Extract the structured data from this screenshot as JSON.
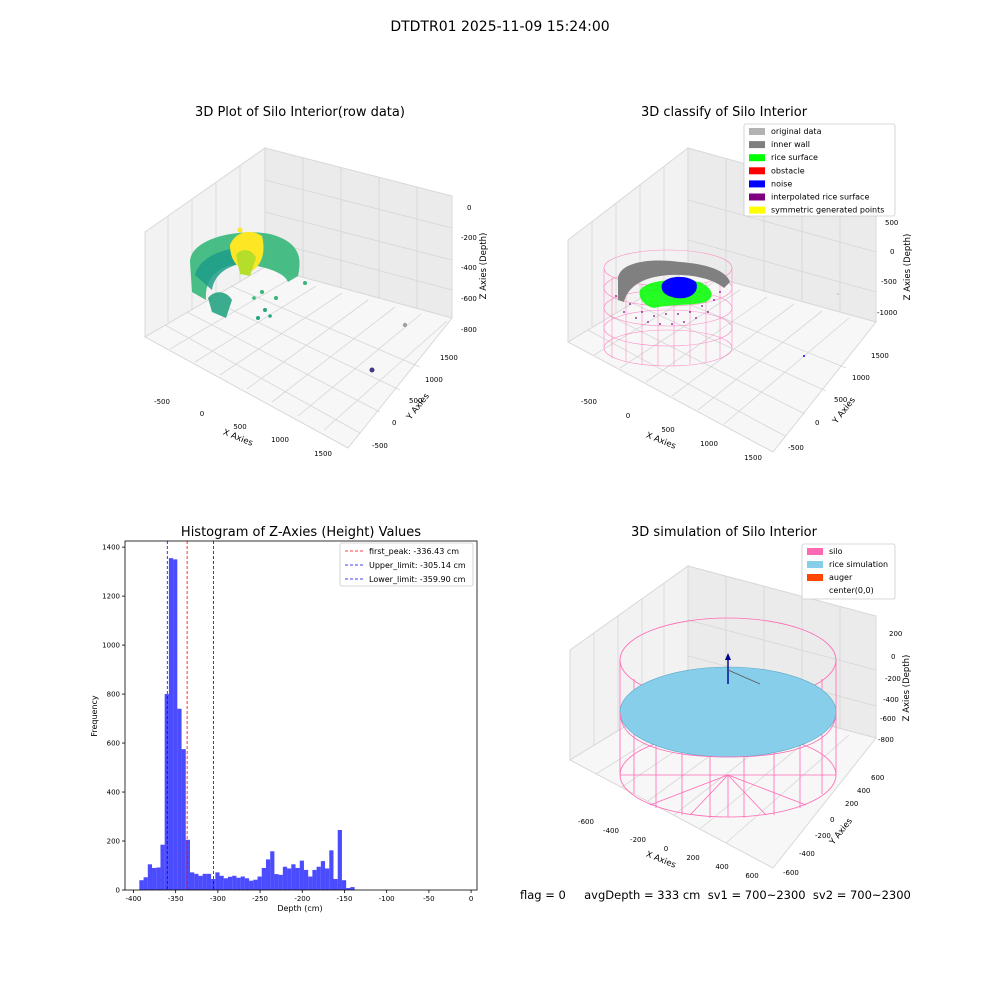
{
  "figure": {
    "suptitle": "DTDTR01 2025-11-09 15:24:00",
    "footer": "flag = 0     avgDepth = 333 cm  sv1 = 700~2300  sv2 = 700~2300"
  },
  "panels": {
    "raw": {
      "title": "3D Plot of Silo Interior(row data)",
      "xlabel": "X Axies",
      "ylabel": "Y Axies",
      "zlabel": "Z Axies (Depth)",
      "xticks": [
        "-500",
        "0",
        "500",
        "1000",
        "1500"
      ],
      "yticks": [
        "-500",
        "0",
        "500",
        "1000",
        "1500"
      ],
      "zticks": [
        "0",
        "-200",
        "-400",
        "-600",
        "-800"
      ]
    },
    "classify": {
      "title": "3D classify of Silo Interior",
      "xlabel": "X Axies",
      "ylabel": "Y Axies",
      "zlabel": "Z Axies (Depth)",
      "xticks": [
        "-500",
        "0",
        "500",
        "1000",
        "1500"
      ],
      "yticks": [
        "-500",
        "0",
        "500",
        "1000",
        "1500"
      ],
      "zticks": [
        "500",
        "0",
        "-500",
        "-1000"
      ],
      "legend": [
        {
          "label": "original data",
          "color": "#b3b3b3"
        },
        {
          "label": "inner wall",
          "color": "#808080"
        },
        {
          "label": "rice surface",
          "color": "#00ff00"
        },
        {
          "label": "obstacle",
          "color": "#ff0000"
        },
        {
          "label": "noise",
          "color": "#0000ff"
        },
        {
          "label": "interpolated rice surface",
          "color": "#800080"
        },
        {
          "label": "symmetric generated points",
          "color": "#ffff00"
        }
      ]
    },
    "simulation": {
      "title": "3D simulation of Silo Interior",
      "xlabel": "X Axies",
      "ylabel": "Y Axies",
      "zlabel": "Z Axies (Depth)",
      "xticks": [
        "-600",
        "-400",
        "-200",
        "0",
        "200",
        "400",
        "600"
      ],
      "yticks": [
        "-600",
        "-400",
        "-200",
        "0",
        "200",
        "400",
        "600"
      ],
      "zticks": [
        "200",
        "0",
        "-200",
        "-400",
        "-600",
        "-800"
      ],
      "legend": [
        {
          "label": "silo",
          "color": "#ff69b4"
        },
        {
          "label": "rice simulation",
          "color": "#87ceeb"
        },
        {
          "label": "auger",
          "color": "#ff4500"
        },
        {
          "label": "center(0,0)",
          "color": "#ffffff"
        }
      ]
    }
  },
  "chart_data": {
    "type": "bar",
    "title": "Histogram of Z-Axies (Height) Values",
    "xlabel": "Depth (cm)",
    "ylabel": "Frequency",
    "xlim": [
      -410,
      7
    ],
    "ylim": [
      0,
      1425
    ],
    "xticks": [
      -400,
      -350,
      -300,
      -250,
      -200,
      -150,
      -100,
      -50,
      0
    ],
    "yticks": [
      0,
      200,
      400,
      600,
      800,
      1000,
      1200,
      1400
    ],
    "bar_color": "#0000ff",
    "bins": [
      [
        -393,
        -388,
        40
      ],
      [
        -388,
        -383,
        52
      ],
      [
        -383,
        -378,
        105
      ],
      [
        -378,
        -373,
        90
      ],
      [
        -373,
        -368,
        92
      ],
      [
        -368,
        -363,
        185
      ],
      [
        -363,
        -358,
        800
      ],
      [
        -358,
        -353,
        1355
      ],
      [
        -353,
        -348,
        1350
      ],
      [
        -348,
        -343,
        740
      ],
      [
        -343,
        -338,
        575
      ],
      [
        -338,
        -333,
        205
      ],
      [
        -333,
        -328,
        72
      ],
      [
        -328,
        -323,
        66
      ],
      [
        -323,
        -318,
        58
      ],
      [
        -318,
        -313,
        66
      ],
      [
        -313,
        -308,
        66
      ],
      [
        -308,
        -303,
        45
      ],
      [
        -303,
        -298,
        72
      ],
      [
        -298,
        -293,
        58
      ],
      [
        -293,
        -288,
        48
      ],
      [
        -288,
        -283,
        54
      ],
      [
        -283,
        -278,
        58
      ],
      [
        -278,
        -273,
        50
      ],
      [
        -273,
        -268,
        55
      ],
      [
        -268,
        -263,
        48
      ],
      [
        -263,
        -258,
        38
      ],
      [
        -258,
        -253,
        42
      ],
      [
        -253,
        -248,
        55
      ],
      [
        -248,
        -243,
        90
      ],
      [
        -243,
        -238,
        125
      ],
      [
        -238,
        -233,
        158
      ],
      [
        -233,
        -228,
        65
      ],
      [
        -228,
        -223,
        62
      ],
      [
        -223,
        -218,
        95
      ],
      [
        -218,
        -213,
        88
      ],
      [
        -213,
        -208,
        105
      ],
      [
        -208,
        -203,
        90
      ],
      [
        -203,
        -198,
        120
      ],
      [
        -198,
        -193,
        82
      ],
      [
        -193,
        -188,
        55
      ],
      [
        -188,
        -183,
        82
      ],
      [
        -183,
        -178,
        95
      ],
      [
        -178,
        -173,
        118
      ],
      [
        -173,
        -168,
        88
      ],
      [
        -168,
        -163,
        162
      ],
      [
        -163,
        -158,
        45
      ],
      [
        -158,
        -153,
        245
      ],
      [
        -153,
        -148,
        40
      ],
      [
        -148,
        -143,
        8
      ],
      [
        -143,
        -138,
        12
      ]
    ],
    "vlines": [
      {
        "x": -336.43,
        "color": "#ff0000",
        "label": "first_peak: -336.43 cm"
      },
      {
        "x": -305.14,
        "color": "#0000ff",
        "label": "Upper_limit: -305.14 cm"
      },
      {
        "x": -359.9,
        "color": "#0000ff",
        "label": "Lower_limit: -359.90 cm"
      }
    ],
    "legend_position": "top-right"
  }
}
